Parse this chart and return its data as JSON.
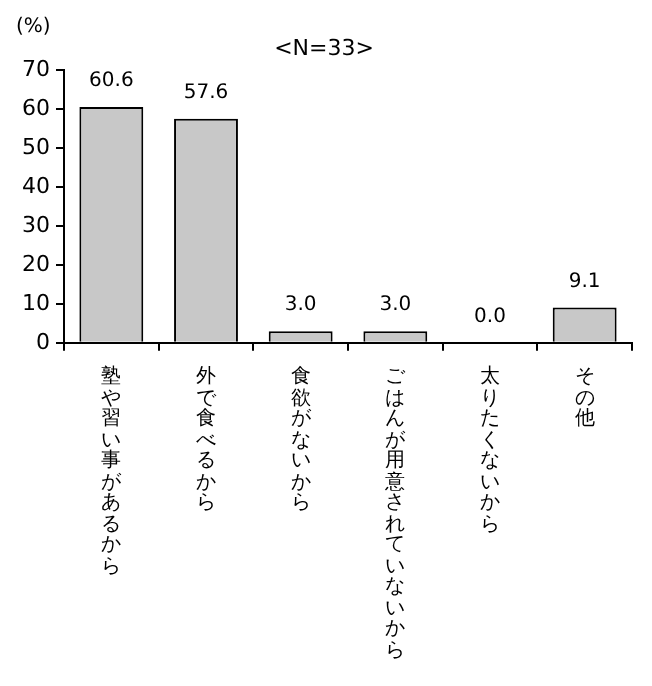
{
  "chart_data": {
    "type": "bar",
    "title": "<N=33>",
    "ylabel": "(%)",
    "categories": [
      "塾や習い事があるから",
      "外で食べるから",
      "食欲がないから",
      "ごはんが用意されていないから",
      "太りたくないから",
      "その他"
    ],
    "values": [
      60.6,
      57.6,
      3.0,
      3.0,
      0.0,
      9.1
    ],
    "value_labels": [
      "60.6",
      "57.6",
      "3.0",
      "3.0",
      "0.0",
      "9.1"
    ],
    "color": "#c8c8c8",
    "ylim": [
      0,
      70
    ],
    "yticks": [
      0,
      10,
      20,
      30,
      40,
      50,
      60,
      70
    ],
    "grid": false,
    "legend": false
  }
}
